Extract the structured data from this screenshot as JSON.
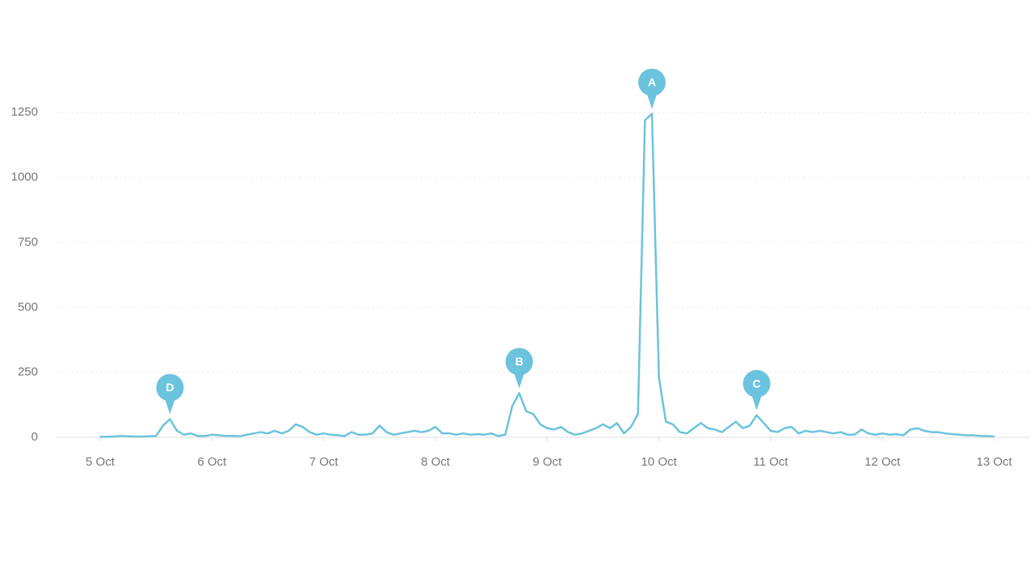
{
  "chart_data": {
    "type": "line",
    "x": [
      5,
      5.0625,
      5.125,
      5.1875,
      5.25,
      5.3125,
      5.375,
      5.4375,
      5.5,
      5.5625,
      5.625,
      5.6875,
      5.75,
      5.8125,
      5.875,
      5.9375,
      6,
      6.0625,
      6.125,
      6.1875,
      6.25,
      6.3125,
      6.375,
      6.4375,
      6.5,
      6.5625,
      6.625,
      6.6875,
      6.75,
      6.8125,
      6.875,
      6.9375,
      7,
      7.0625,
      7.125,
      7.1875,
      7.25,
      7.3125,
      7.375,
      7.4375,
      7.5,
      7.5625,
      7.625,
      7.6875,
      7.75,
      7.8125,
      7.875,
      7.9375,
      8,
      8.0625,
      8.125,
      8.1875,
      8.25,
      8.3125,
      8.375,
      8.4375,
      8.5,
      8.5625,
      8.625,
      8.6875,
      8.75,
      8.8125,
      8.875,
      8.9375,
      9,
      9.0625,
      9.125,
      9.1875,
      9.25,
      9.3125,
      9.375,
      9.4375,
      9.5,
      9.5625,
      9.625,
      9.6875,
      9.75,
      9.8125,
      9.875,
      9.9375,
      10,
      10.0625,
      10.125,
      10.1875,
      10.25,
      10.3125,
      10.375,
      10.4375,
      10.5,
      10.5625,
      10.625,
      10.6875,
      10.75,
      10.8125,
      10.875,
      10.9375,
      11,
      11.0625,
      11.125,
      11.1875,
      11.25,
      11.3125,
      11.375,
      11.4375,
      11.5,
      11.5625,
      11.625,
      11.6875,
      11.75,
      11.8125,
      11.875,
      11.9375,
      12,
      12.0625,
      12.125,
      12.1875,
      12.25,
      12.3125,
      12.375,
      12.4375,
      12.5,
      12.5625,
      12.625,
      12.6875,
      12.75,
      12.8125,
      12.875,
      12.9375,
      13
    ],
    "series": [
      {
        "color": "#6cc3dd",
        "values": [
          2,
          2,
          3,
          5,
          4,
          3,
          3,
          4,
          5,
          45,
          70,
          25,
          10,
          15,
          5,
          5,
          10,
          8,
          5,
          6,
          4,
          10,
          15,
          20,
          15,
          25,
          15,
          25,
          50,
          40,
          20,
          10,
          15,
          10,
          8,
          5,
          20,
          10,
          10,
          15,
          45,
          20,
          10,
          15,
          20,
          25,
          20,
          25,
          40,
          15,
          15,
          10,
          15,
          10,
          12,
          10,
          15,
          5,
          10,
          120,
          170,
          100,
          90,
          50,
          35,
          30,
          40,
          20,
          10,
          15,
          25,
          35,
          50,
          35,
          55,
          15,
          40,
          90,
          1220,
          1245,
          230,
          60,
          50,
          20,
          15,
          35,
          55,
          35,
          30,
          20,
          40,
          60,
          35,
          45,
          85,
          55,
          25,
          20,
          35,
          40,
          15,
          25,
          20,
          25,
          20,
          15,
          20,
          10,
          10,
          30,
          15,
          10,
          15,
          10,
          12,
          8,
          30,
          35,
          25,
          20,
          20,
          15,
          12,
          10,
          8,
          8,
          5,
          5,
          3
        ]
      }
    ],
    "xlim": [
      4.61,
      13.32
    ],
    "xticks": [
      {
        "value": 5,
        "label": "5 Oct"
      },
      {
        "value": 6,
        "label": "6 Oct"
      },
      {
        "value": 7,
        "label": "7 Oct"
      },
      {
        "value": 8,
        "label": "8 Oct"
      },
      {
        "value": 9,
        "label": "9 Oct"
      },
      {
        "value": 10,
        "label": "10 Oct"
      },
      {
        "value": 11,
        "label": "11 Oct"
      },
      {
        "value": 12,
        "label": "12 Oct"
      },
      {
        "value": 13,
        "label": "13 Oct"
      }
    ],
    "ylim": [
      0,
      1400
    ],
    "yticks": [
      0,
      250,
      500,
      750,
      1000,
      1250
    ],
    "grid": true,
    "annotations": [
      {
        "label": "A",
        "x": 9.9375,
        "y": 1245
      },
      {
        "label": "B",
        "x": 8.75,
        "y": 170
      },
      {
        "label": "C",
        "x": 10.875,
        "y": 85
      },
      {
        "label": "D",
        "x": 5.625,
        "y": 70
      }
    ]
  }
}
